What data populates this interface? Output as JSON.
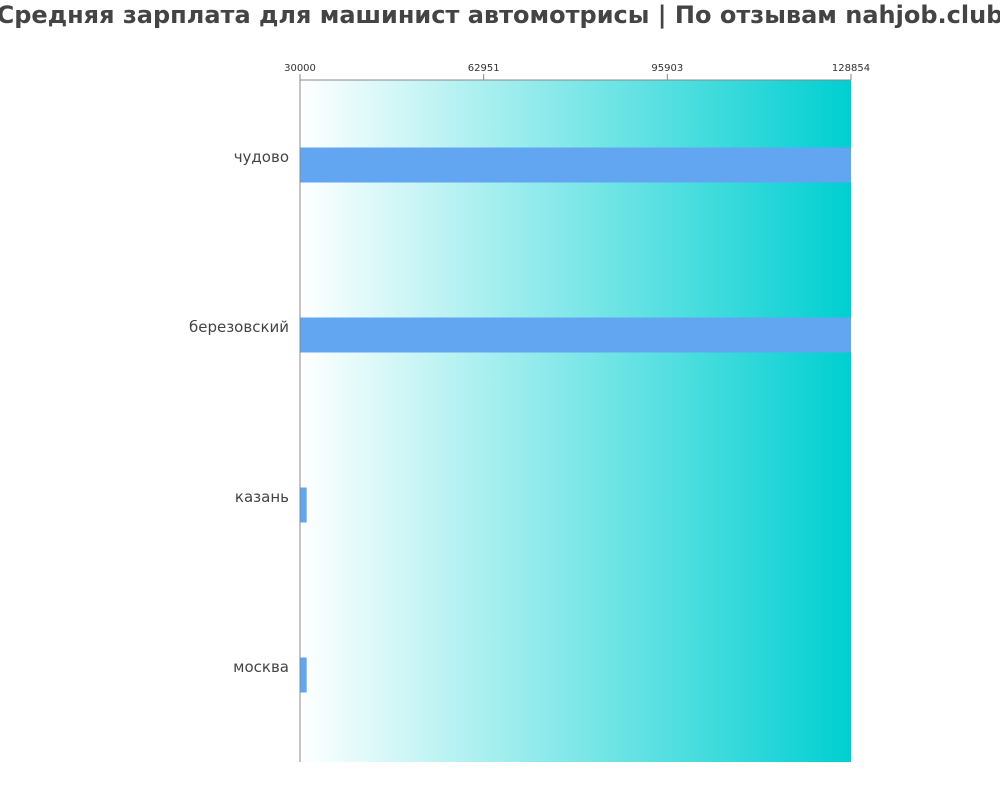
{
  "chart_data": {
    "type": "bar",
    "orientation": "horizontal",
    "title": "Средняя зарплата для машинист автомотрисы | По отзывам nahjob.club",
    "categories": [
      "чудово",
      "березовский",
      "казань",
      "москва"
    ],
    "values": [
      128854,
      128854,
      31200,
      31200
    ],
    "xlim": [
      30000,
      128854
    ],
    "xticks": [
      "30000",
      "62951",
      "95903",
      "128854"
    ],
    "xlabel": "",
    "ylabel": "",
    "grid": false,
    "legend": "none",
    "colors": {
      "bar": "#62a6f1",
      "background_start": "#ffffff",
      "background_end": "#00cfd1",
      "axis": "#888888",
      "title": "#444444"
    }
  }
}
